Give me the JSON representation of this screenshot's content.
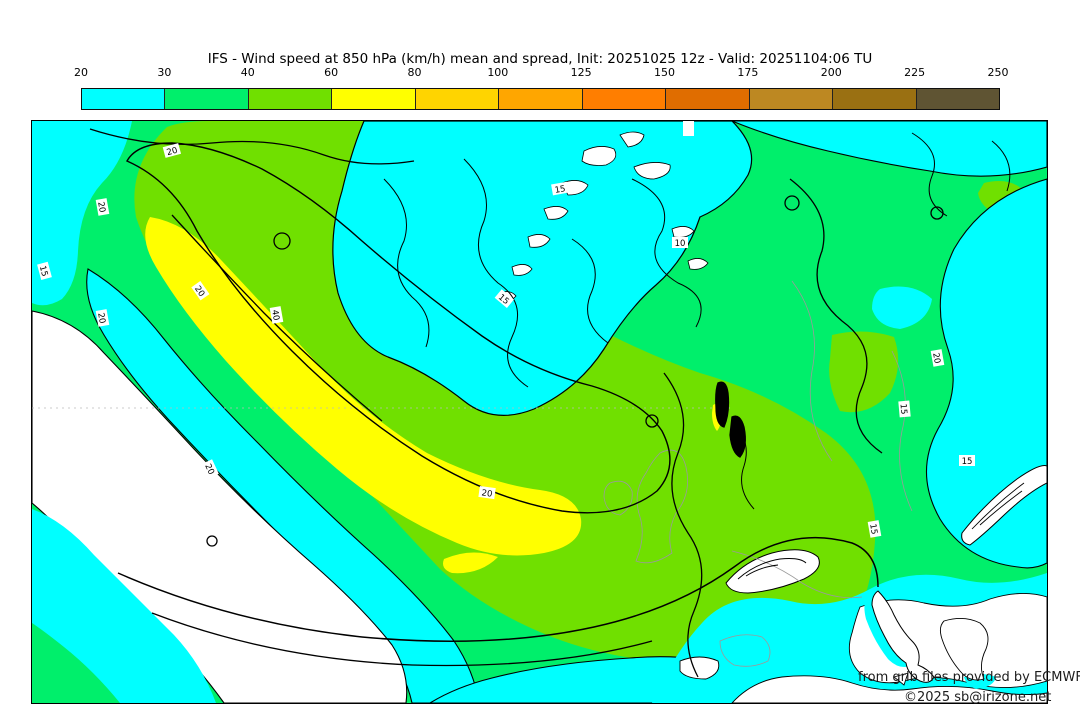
{
  "title": "IFS - Wind speed at 850 hPa (km/h) mean and spread, Init: 20251025 12z - Valid: 20251104:06 TU",
  "colorbar": {
    "ticks": [
      "20",
      "30",
      "40",
      "60",
      "80",
      "100",
      "125",
      "150",
      "175",
      "200",
      "225",
      "250"
    ],
    "colors": [
      "#00ffff",
      "#00ef6b",
      "#70e000",
      "#ffff00",
      "#ffd400",
      "#ffa600",
      "#ff7e00",
      "#e06d00",
      "#bd8822",
      "#9a7012",
      "#5f5433"
    ]
  },
  "palette": {
    "below_min": "#ffffff",
    "c20_30": "#00ffff",
    "c30_40": "#00ef6b",
    "c40_60": "#70e000",
    "c60_80": "#ffff00",
    "contour": "#000000",
    "coast_gray": "#9a9a9a"
  },
  "map": {
    "contour_labels": [
      "20",
      "20",
      "15",
      "20",
      "20",
      "40",
      "20",
      "20",
      "15",
      "10",
      "15",
      "20",
      "15",
      "15",
      "15"
    ],
    "attribution": {
      "line1": "from grib files provided by ECMWF",
      "line2": "©2025 sb@irizone.net"
    }
  }
}
